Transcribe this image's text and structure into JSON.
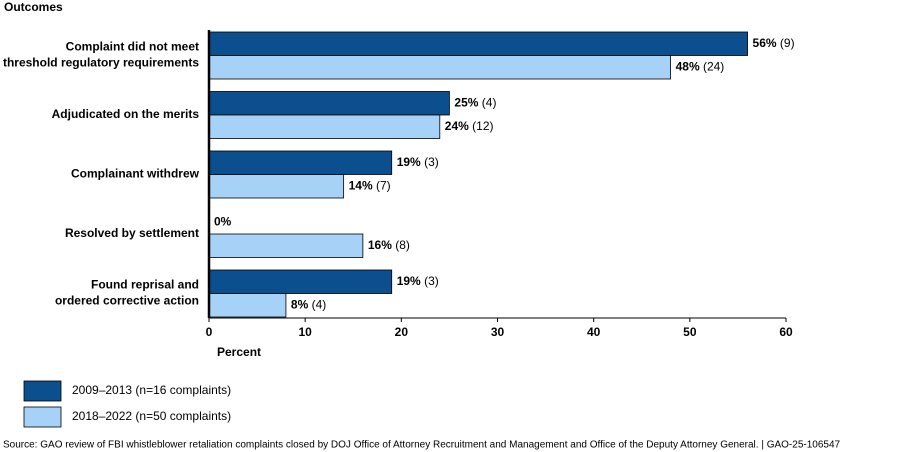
{
  "chart_data": {
    "type": "hbar",
    "y_axis_label": "Outcomes",
    "x_axis_label": "Percent",
    "categories": [
      [
        "Complaint did not meet",
        "threshold regulatory requirements"
      ],
      [
        "Adjudicated on the merits"
      ],
      [
        "Complainant withdrew"
      ],
      [
        "Resolved by settlement"
      ],
      [
        "Found reprisal and",
        "ordered corrective action"
      ]
    ],
    "series": [
      {
        "name": "2009–2013 (n=16 complaints)",
        "color": "#0b4f8f",
        "values": [
          56,
          25,
          19,
          0,
          19
        ],
        "value_labels": [
          "56% (9)",
          "25% (4)",
          "19% (3)",
          "0%",
          "19% (3)"
        ]
      },
      {
        "name": "2018–2022 (n=50 complaints)",
        "color": "#a6d2f7",
        "values": [
          48,
          24,
          14,
          16,
          8
        ],
        "value_labels": [
          "48% (24)",
          "24% (12)",
          "14% (7)",
          "16% (8)",
          "8% (4)"
        ]
      }
    ],
    "xlim": [
      0,
      60
    ],
    "xticks": [
      0,
      10,
      20,
      30,
      40,
      50,
      60
    ],
    "legend_position": "bottom-left",
    "source": "Source: GAO review of FBI whistleblower retaliation complaints closed by DOJ Office of Attorney Recruitment and Management and Office of the Deputy Attorney General.  |  GAO-25-106547"
  }
}
